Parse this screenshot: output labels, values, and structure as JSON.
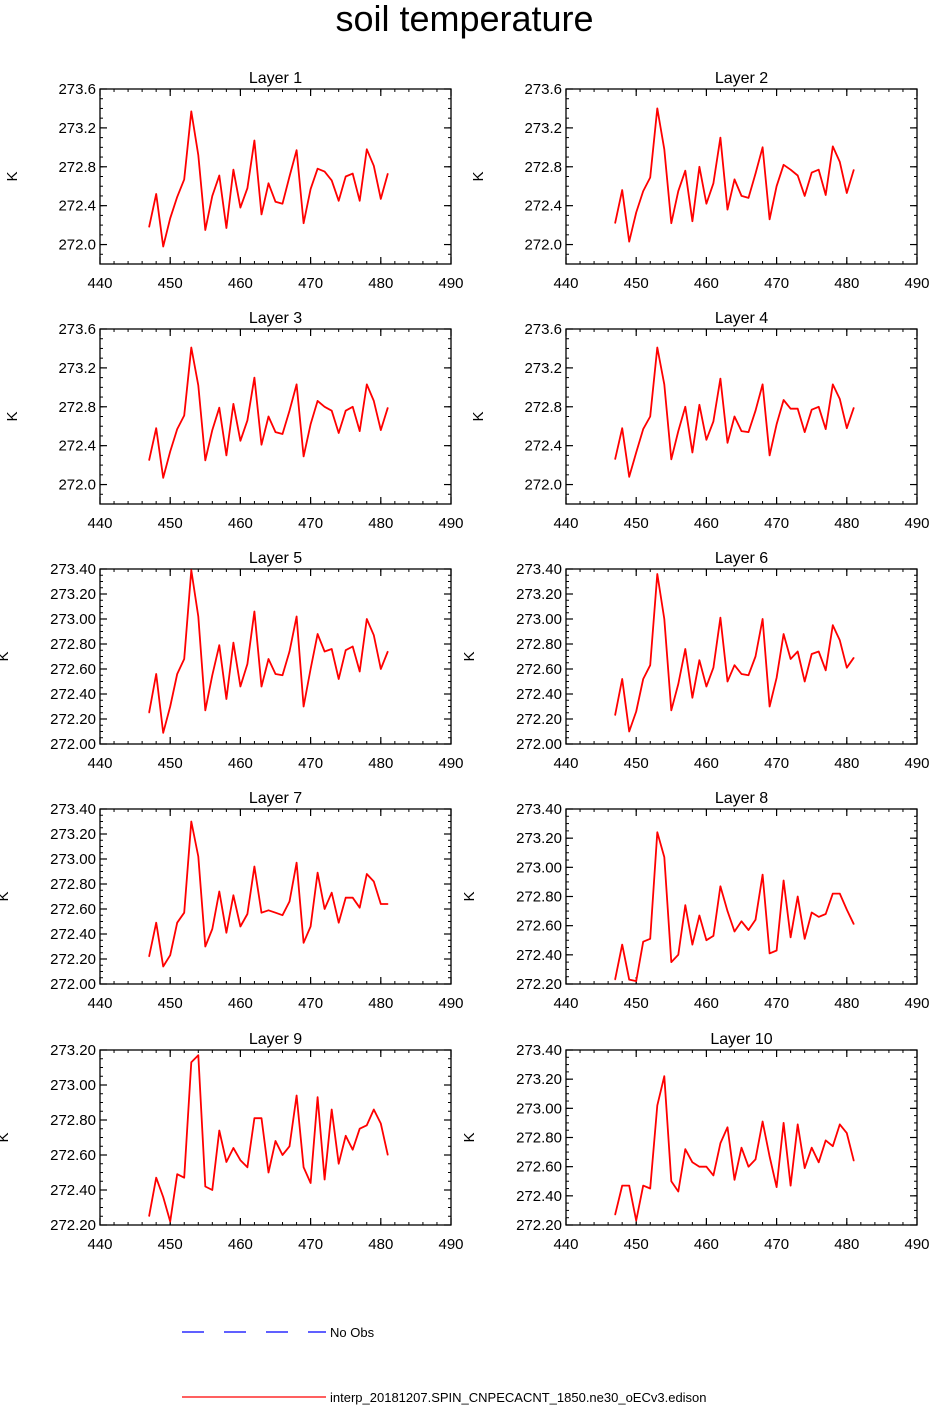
{
  "title": "soil temperature",
  "colors": {
    "model": "#ff0000",
    "obs": "#0000ff",
    "axis": "#000000"
  },
  "legend": [
    {
      "label": "No Obs",
      "style": "dashed",
      "color": "#0000ff"
    },
    {
      "label": "interp_20181207.SPIN_CNPECACNT_1850.ne30_oECv3.edison",
      "style": "solid",
      "color": "#ff0000"
    }
  ],
  "chart_data": [
    {
      "type": "line",
      "title": "Layer 1",
      "ylabel": "K",
      "xlim": [
        440,
        490
      ],
      "ylim": [
        271.8,
        273.6
      ],
      "xticks": [
        440,
        450,
        460,
        470,
        480,
        490
      ],
      "yticks": [
        272.0,
        272.4,
        272.8,
        273.2,
        273.6
      ],
      "ydec": 1,
      "x": [
        447,
        448,
        449,
        450,
        451,
        452,
        453,
        454,
        455,
        456,
        457,
        458,
        459,
        460,
        461,
        462,
        463,
        464,
        465,
        466,
        467,
        468,
        469,
        470,
        471,
        472,
        473,
        474,
        475,
        476,
        477,
        478,
        479,
        480,
        481
      ],
      "series": [
        {
          "name": "interp_20181207.SPIN_CNPECACNT_1850.ne30_oECv3.edison",
          "values": [
            272.18,
            272.52,
            271.98,
            272.27,
            272.49,
            272.67,
            273.37,
            272.92,
            272.15,
            272.5,
            272.71,
            272.17,
            272.77,
            272.38,
            272.58,
            273.07,
            272.31,
            272.63,
            272.44,
            272.42,
            272.7,
            272.97,
            272.22,
            272.57,
            272.78,
            272.75,
            272.66,
            272.45,
            272.7,
            272.73,
            272.45,
            272.98,
            272.81,
            272.47,
            272.73
          ]
        }
      ]
    },
    {
      "type": "line",
      "title": "Layer 2",
      "ylabel": "K",
      "xlim": [
        440,
        490
      ],
      "ylim": [
        271.8,
        273.6
      ],
      "xticks": [
        440,
        450,
        460,
        470,
        480,
        490
      ],
      "yticks": [
        272.0,
        272.4,
        272.8,
        273.2,
        273.6
      ],
      "ydec": 1,
      "x": [
        447,
        448,
        449,
        450,
        451,
        452,
        453,
        454,
        455,
        456,
        457,
        458,
        459,
        460,
        461,
        462,
        463,
        464,
        465,
        466,
        467,
        468,
        469,
        470,
        471,
        472,
        473,
        474,
        475,
        476,
        477,
        478,
        479,
        480,
        481
      ],
      "series": [
        {
          "name": "interp_20181207.SPIN_CNPECACNT_1850.ne30_oECv3.edison",
          "values": [
            272.22,
            272.56,
            272.03,
            272.33,
            272.55,
            272.69,
            273.4,
            272.98,
            272.22,
            272.55,
            272.76,
            272.24,
            272.8,
            272.42,
            272.63,
            273.1,
            272.36,
            272.67,
            272.5,
            272.48,
            272.73,
            273.0,
            272.26,
            272.6,
            272.82,
            272.77,
            272.71,
            272.5,
            272.74,
            272.77,
            272.51,
            273.01,
            272.85,
            272.53,
            272.77
          ]
        }
      ]
    },
    {
      "type": "line",
      "title": "Layer 3",
      "ylabel": "K",
      "xlim": [
        440,
        490
      ],
      "ylim": [
        271.8,
        273.6
      ],
      "xticks": [
        440,
        450,
        460,
        470,
        480,
        490
      ],
      "yticks": [
        272.0,
        272.4,
        272.8,
        273.2,
        273.6
      ],
      "ydec": 1,
      "x": [
        447,
        448,
        449,
        450,
        451,
        452,
        453,
        454,
        455,
        456,
        457,
        458,
        459,
        460,
        461,
        462,
        463,
        464,
        465,
        466,
        467,
        468,
        469,
        470,
        471,
        472,
        473,
        474,
        475,
        476,
        477,
        478,
        479,
        480,
        481
      ],
      "series": [
        {
          "name": "interp_20181207.SPIN_CNPECACNT_1850.ne30_oECv3.edison",
          "values": [
            272.25,
            272.58,
            272.07,
            272.34,
            272.57,
            272.71,
            273.41,
            273.02,
            272.25,
            272.56,
            272.79,
            272.3,
            272.83,
            272.45,
            272.66,
            273.1,
            272.41,
            272.7,
            272.54,
            272.52,
            272.76,
            273.03,
            272.29,
            272.62,
            272.86,
            272.8,
            272.76,
            272.53,
            272.76,
            272.8,
            272.55,
            273.03,
            272.86,
            272.56,
            272.79
          ]
        }
      ]
    },
    {
      "type": "line",
      "title": "Layer 4",
      "ylabel": "K",
      "xlim": [
        440,
        490
      ],
      "ylim": [
        271.8,
        273.6
      ],
      "xticks": [
        440,
        450,
        460,
        470,
        480,
        490
      ],
      "yticks": [
        272.0,
        272.4,
        272.8,
        273.2,
        273.6
      ],
      "ydec": 1,
      "x": [
        447,
        448,
        449,
        450,
        451,
        452,
        453,
        454,
        455,
        456,
        457,
        458,
        459,
        460,
        461,
        462,
        463,
        464,
        465,
        466,
        467,
        468,
        469,
        470,
        471,
        472,
        473,
        474,
        475,
        476,
        477,
        478,
        479,
        480,
        481
      ],
      "series": [
        {
          "name": "interp_20181207.SPIN_CNPECACNT_1850.ne30_oECv3.edison",
          "values": [
            272.26,
            272.58,
            272.08,
            272.33,
            272.57,
            272.7,
            273.41,
            273.03,
            272.26,
            272.55,
            272.8,
            272.33,
            272.82,
            272.46,
            272.65,
            273.09,
            272.43,
            272.7,
            272.55,
            272.54,
            272.76,
            273.03,
            272.3,
            272.62,
            272.87,
            272.78,
            272.78,
            272.54,
            272.77,
            272.8,
            272.57,
            273.03,
            272.88,
            272.58,
            272.79
          ]
        }
      ]
    },
    {
      "type": "line",
      "title": "Layer 5",
      "ylabel": "K",
      "xlim": [
        440,
        490
      ],
      "ylim": [
        272.0,
        273.4
      ],
      "xticks": [
        440,
        450,
        460,
        470,
        480,
        490
      ],
      "yticks": [
        272.0,
        272.2,
        272.4,
        272.6,
        272.8,
        273.0,
        273.2,
        273.4
      ],
      "ydec": 2,
      "x": [
        447,
        448,
        449,
        450,
        451,
        452,
        453,
        454,
        455,
        456,
        457,
        458,
        459,
        460,
        461,
        462,
        463,
        464,
        465,
        466,
        467,
        468,
        469,
        470,
        471,
        472,
        473,
        474,
        475,
        476,
        477,
        478,
        479,
        480,
        481
      ],
      "series": [
        {
          "name": "interp_20181207.SPIN_CNPECACNT_1850.ne30_oECv3.edison",
          "values": [
            272.25,
            272.56,
            272.09,
            272.3,
            272.56,
            272.68,
            273.39,
            273.02,
            272.27,
            272.55,
            272.79,
            272.36,
            272.81,
            272.46,
            272.64,
            273.06,
            272.46,
            272.68,
            272.56,
            272.55,
            272.74,
            273.02,
            272.3,
            272.6,
            272.88,
            272.74,
            272.76,
            272.52,
            272.75,
            272.78,
            272.58,
            273.0,
            272.87,
            272.6,
            272.74
          ]
        }
      ]
    },
    {
      "type": "line",
      "title": "Layer 6",
      "ylabel": "K",
      "xlim": [
        440,
        490
      ],
      "ylim": [
        272.0,
        273.4
      ],
      "xticks": [
        440,
        450,
        460,
        470,
        480,
        490
      ],
      "yticks": [
        272.0,
        272.2,
        272.4,
        272.6,
        272.8,
        273.0,
        273.2,
        273.4
      ],
      "ydec": 2,
      "x": [
        447,
        448,
        449,
        450,
        451,
        452,
        453,
        454,
        455,
        456,
        457,
        458,
        459,
        460,
        461,
        462,
        463,
        464,
        465,
        466,
        467,
        468,
        469,
        470,
        471,
        472,
        473,
        474,
        475,
        476,
        477,
        478,
        479,
        480,
        481
      ],
      "series": [
        {
          "name": "interp_20181207.SPIN_CNPECACNT_1850.ne30_oECv3.edison",
          "values": [
            272.23,
            272.52,
            272.1,
            272.26,
            272.52,
            272.63,
            273.36,
            273.0,
            272.27,
            272.48,
            272.76,
            272.37,
            272.67,
            272.46,
            272.61,
            273.01,
            272.5,
            272.63,
            272.56,
            272.55,
            272.7,
            273.0,
            272.3,
            272.53,
            272.88,
            272.68,
            272.74,
            272.5,
            272.72,
            272.74,
            272.59,
            272.95,
            272.83,
            272.61,
            272.69
          ]
        }
      ]
    },
    {
      "type": "line",
      "title": "Layer 7",
      "ylabel": "K",
      "xlim": [
        440,
        490
      ],
      "ylim": [
        272.0,
        273.4
      ],
      "xticks": [
        440,
        450,
        460,
        470,
        480,
        490
      ],
      "yticks": [
        272.0,
        272.2,
        272.4,
        272.6,
        272.8,
        273.0,
        273.2,
        273.4
      ],
      "ydec": 2,
      "x": [
        447,
        448,
        449,
        450,
        451,
        452,
        453,
        454,
        455,
        456,
        457,
        458,
        459,
        460,
        461,
        462,
        463,
        464,
        465,
        466,
        467,
        468,
        469,
        470,
        471,
        472,
        473,
        474,
        475,
        476,
        477,
        478,
        479,
        480,
        481
      ],
      "series": [
        {
          "name": "interp_20181207.SPIN_CNPECACNT_1850.ne30_oECv3.edison",
          "values": [
            272.22,
            272.49,
            272.14,
            272.23,
            272.49,
            272.57,
            273.3,
            273.02,
            272.3,
            272.44,
            272.74,
            272.41,
            272.71,
            272.46,
            272.56,
            272.94,
            272.57,
            272.59,
            272.57,
            272.55,
            272.66,
            272.97,
            272.33,
            272.46,
            272.89,
            272.6,
            272.73,
            272.49,
            272.69,
            272.69,
            272.61,
            272.88,
            272.82,
            272.64,
            272.64
          ]
        }
      ]
    },
    {
      "type": "line",
      "title": "Layer 8",
      "ylabel": "K",
      "xlim": [
        440,
        490
      ],
      "ylim": [
        272.2,
        273.4
      ],
      "xticks": [
        440,
        450,
        460,
        470,
        480,
        490
      ],
      "yticks": [
        272.2,
        272.4,
        272.6,
        272.8,
        273.0,
        273.2,
        273.4
      ],
      "ydec": 2,
      "x": [
        447,
        448,
        449,
        450,
        451,
        452,
        453,
        454,
        455,
        456,
        457,
        458,
        459,
        460,
        461,
        462,
        463,
        464,
        465,
        466,
        467,
        468,
        469,
        470,
        471,
        472,
        473,
        474,
        475,
        476,
        477,
        478,
        479,
        480,
        481
      ],
      "series": [
        {
          "name": "interp_20181207.SPIN_CNPECACNT_1850.ne30_oECv3.edison",
          "values": [
            272.23,
            272.47,
            272.23,
            272.22,
            272.49,
            272.51,
            273.24,
            273.07,
            272.35,
            272.4,
            272.74,
            272.47,
            272.67,
            272.5,
            272.53,
            272.87,
            272.7,
            272.56,
            272.63,
            272.57,
            272.64,
            272.95,
            272.41,
            272.43,
            272.91,
            272.52,
            272.8,
            272.51,
            272.69,
            272.66,
            272.68,
            272.82,
            272.82,
            272.71,
            272.61
          ]
        }
      ]
    },
    {
      "type": "line",
      "title": "Layer 9",
      "ylabel": "K",
      "xlim": [
        440,
        490
      ],
      "ylim": [
        272.2,
        273.2
      ],
      "xticks": [
        440,
        450,
        460,
        470,
        480,
        490
      ],
      "yticks": [
        272.2,
        272.4,
        272.6,
        272.8,
        273.0,
        273.2
      ],
      "ydec": 2,
      "x": [
        447,
        448,
        449,
        450,
        451,
        452,
        453,
        454,
        455,
        456,
        457,
        458,
        459,
        460,
        461,
        462,
        463,
        464,
        465,
        466,
        467,
        468,
        469,
        470,
        471,
        472,
        473,
        474,
        475,
        476,
        477,
        478,
        479,
        480,
        481
      ],
      "series": [
        {
          "name": "interp_20181207.SPIN_CNPECACNT_1850.ne30_oECv3.edison",
          "values": [
            272.25,
            272.47,
            272.36,
            272.22,
            272.49,
            272.47,
            273.13,
            273.17,
            272.42,
            272.4,
            272.74,
            272.56,
            272.64,
            272.57,
            272.53,
            272.81,
            272.81,
            272.5,
            272.68,
            272.6,
            272.65,
            272.94,
            272.53,
            272.44,
            272.93,
            272.46,
            272.86,
            272.55,
            272.71,
            272.63,
            272.75,
            272.77,
            272.86,
            272.78,
            272.6
          ]
        }
      ]
    },
    {
      "type": "line",
      "title": "Layer 10",
      "ylabel": "K",
      "xlim": [
        440,
        490
      ],
      "ylim": [
        272.2,
        273.4
      ],
      "xticks": [
        440,
        450,
        460,
        470,
        480,
        490
      ],
      "yticks": [
        272.2,
        272.4,
        272.6,
        272.8,
        273.0,
        273.2,
        273.4
      ],
      "ydec": 2,
      "x": [
        447,
        448,
        449,
        450,
        451,
        452,
        453,
        454,
        455,
        456,
        457,
        458,
        459,
        460,
        461,
        462,
        463,
        464,
        465,
        466,
        467,
        468,
        469,
        470,
        471,
        472,
        473,
        474,
        475,
        476,
        477,
        478,
        479,
        480,
        481
      ],
      "series": [
        {
          "name": "interp_20181207.SPIN_CNPECACNT_1850.ne30_oECv3.edison",
          "values": [
            272.27,
            272.47,
            272.47,
            272.23,
            272.47,
            272.45,
            273.02,
            273.22,
            272.5,
            272.43,
            272.72,
            272.63,
            272.6,
            272.6,
            272.54,
            272.76,
            272.87,
            272.51,
            272.73,
            272.6,
            272.65,
            272.91,
            272.67,
            272.46,
            272.9,
            272.47,
            272.89,
            272.59,
            272.73,
            272.63,
            272.78,
            272.74,
            272.89,
            272.83,
            272.64
          ]
        }
      ]
    }
  ]
}
